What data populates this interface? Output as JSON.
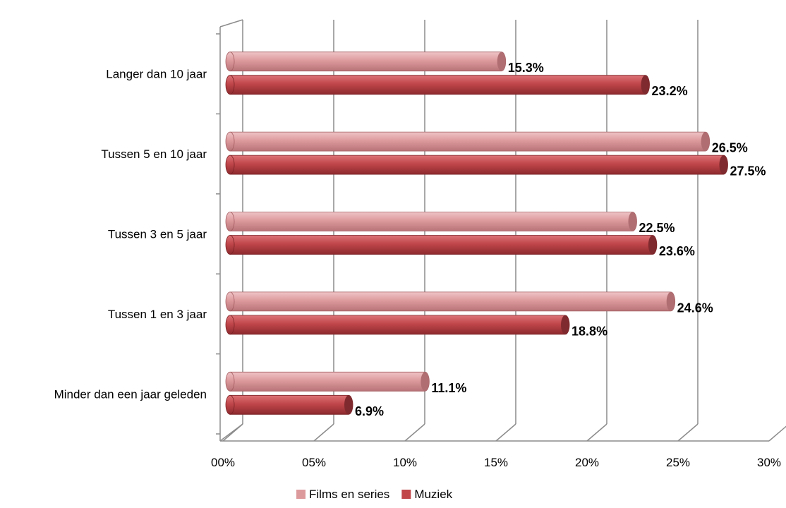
{
  "chart_data": {
    "type": "bar",
    "orientation": "horizontal",
    "style": "3d-cylinder",
    "categories": [
      "Minder dan een jaar geleden",
      "Tussen 1 en 3 jaar",
      "Tussen 3 en 5 jaar",
      "Tussen 5 en 10 jaar",
      "Langer dan 10 jaar"
    ],
    "series": [
      {
        "name": "Films en series",
        "values": [
          11.1,
          24.6,
          22.5,
          26.5,
          15.3
        ],
        "labels": [
          "11.1%",
          "24.6%",
          "22.5%",
          "26.5%",
          "15.3%"
        ],
        "color": "#dd9a9d"
      },
      {
        "name": "Muziek",
        "values": [
          6.9,
          18.8,
          23.6,
          27.5,
          23.2
        ],
        "labels": [
          "6.9%",
          "18.8%",
          "23.6%",
          "27.5%",
          "23.2%"
        ],
        "color": "#c0464a"
      }
    ],
    "x_ticks": [
      "00%",
      "05%",
      "10%",
      "15%",
      "20%",
      "25%",
      "30%"
    ],
    "xlim": [
      0,
      30
    ],
    "grid": true,
    "legend": "bottom"
  }
}
